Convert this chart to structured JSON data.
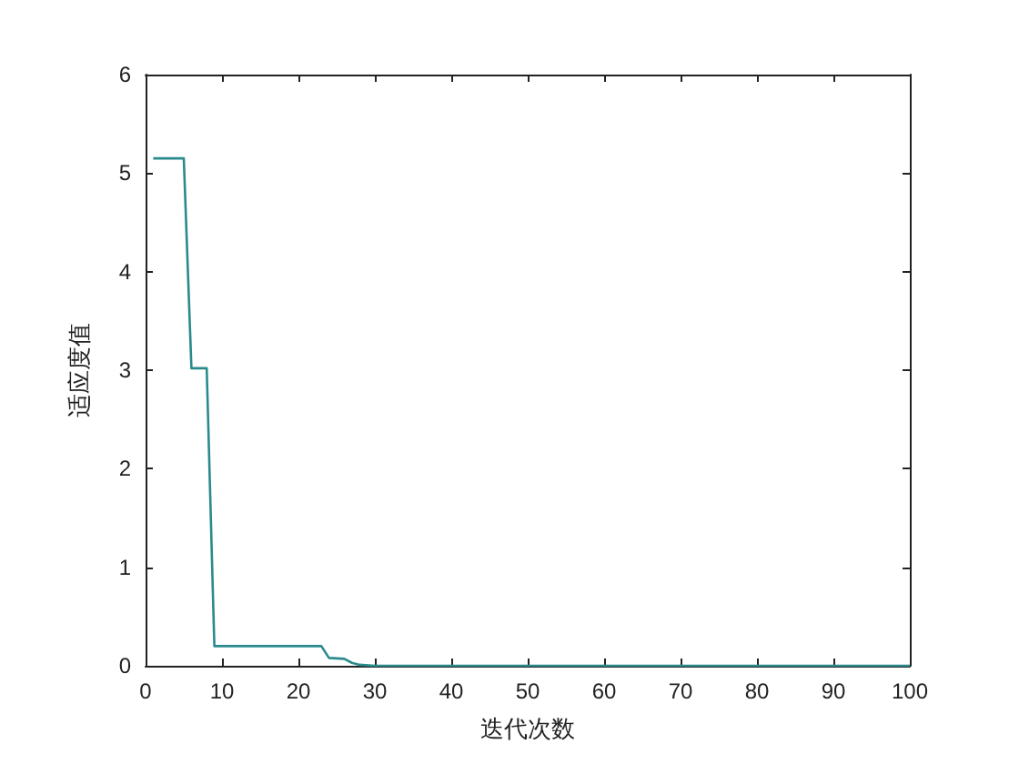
{
  "chart_data": {
    "type": "line",
    "xlabel": "迭代次数",
    "ylabel": "适应度值",
    "x": [
      1,
      5,
      6,
      8,
      9,
      23,
      24,
      26,
      27,
      28,
      30,
      100
    ],
    "series": [
      {
        "color": "#2a8a8c",
        "values": [
          5.15,
          5.15,
          3.02,
          3.02,
          0.2,
          0.2,
          0.08,
          0.07,
          0.03,
          0.01,
          0,
          0
        ]
      }
    ],
    "xlim": [
      0,
      100
    ],
    "xticks": [
      0,
      10,
      20,
      30,
      40,
      50,
      60,
      70,
      80,
      90,
      100
    ],
    "ylim": [
      0,
      6
    ],
    "yticks": [
      0,
      1,
      2,
      3,
      4,
      5,
      6
    ],
    "grid": false,
    "marker": "none",
    "line_style": "solid"
  }
}
